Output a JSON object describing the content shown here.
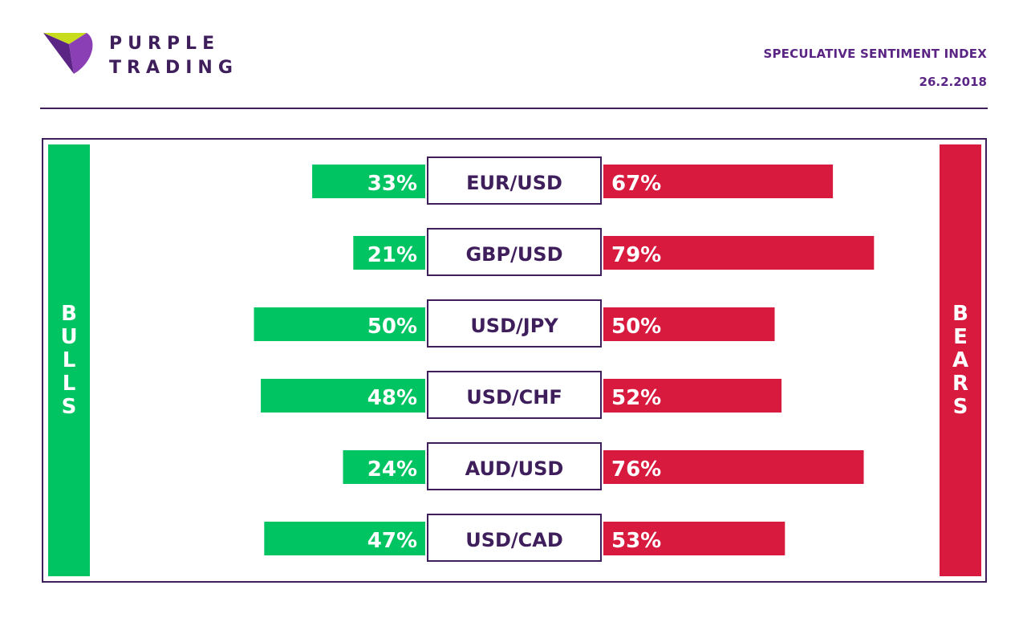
{
  "brand": {
    "line1": "PURPLE",
    "line2": "TRADING",
    "logo_icon": "purple-trading-logo-icon"
  },
  "header": {
    "title": "SPECULATIVE SENTIMENT INDEX",
    "date": "26.2.2018"
  },
  "colors": {
    "bulls": "#00c462",
    "bears": "#d81a3e",
    "brand_purple": "#3f1e5c"
  },
  "chart_data": {
    "type": "bar",
    "orientation": "horizontal-diverging",
    "categories": [
      "EUR/USD",
      "GBP/USD",
      "USD/JPY",
      "USD/CHF",
      "AUD/USD",
      "USD/CAD"
    ],
    "series": [
      {
        "name": "BULLS",
        "values": [
          33,
          21,
          50,
          48,
          24,
          47
        ],
        "labels": [
          "33%",
          "21%",
          "50%",
          "48%",
          "24%",
          "47%"
        ]
      },
      {
        "name": "BEARS",
        "values": [
          67,
          79,
          50,
          52,
          76,
          53
        ],
        "labels": [
          "67%",
          "79%",
          "50%",
          "52%",
          "76%",
          "53%"
        ]
      }
    ],
    "unit": "%"
  }
}
